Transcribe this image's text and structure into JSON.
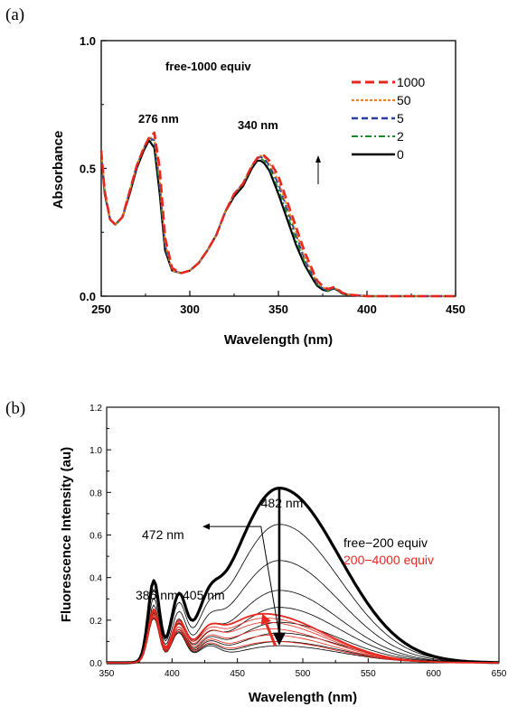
{
  "chart_data": [
    {
      "panel_label": "(a)",
      "type": "line",
      "title": "free-1000 equiv",
      "xlabel": "Wavelength (nm)",
      "ylabel": "Absorbance",
      "xlim": [
        250,
        450
      ],
      "ylim": [
        0.0,
        1.0
      ],
      "xticks": [
        "250",
        "300",
        "350",
        "400",
        "450"
      ],
      "yticks": [
        "0.0",
        "0.5",
        "1.0"
      ],
      "legend_position": "top-right",
      "annotations": [
        "276 nm",
        "340 nm"
      ],
      "arrow_direction": "up",
      "series": [
        {
          "name": "0",
          "color": "#000000",
          "dash": "solid",
          "x": [
            250,
            252,
            255,
            258,
            262,
            266,
            270,
            274,
            277,
            280,
            283,
            286,
            290,
            295,
            300,
            305,
            310,
            315,
            320,
            325,
            330,
            335,
            338,
            340,
            342,
            345,
            350,
            355,
            360,
            365,
            370,
            372,
            375,
            378,
            381,
            383,
            386,
            390,
            400,
            420,
            450
          ],
          "y": [
            0.55,
            0.4,
            0.3,
            0.28,
            0.31,
            0.4,
            0.5,
            0.57,
            0.61,
            0.58,
            0.4,
            0.18,
            0.1,
            0.09,
            0.1,
            0.13,
            0.18,
            0.24,
            0.33,
            0.39,
            0.43,
            0.5,
            0.53,
            0.53,
            0.52,
            0.49,
            0.4,
            0.3,
            0.2,
            0.12,
            0.06,
            0.04,
            0.025,
            0.02,
            0.03,
            0.025,
            0.01,
            0.005,
            0.0,
            0.0,
            0.0
          ]
        },
        {
          "name": "2",
          "color": "#1a8a2a",
          "dash": "dashdot",
          "x": [
            250,
            252,
            255,
            258,
            262,
            266,
            270,
            274,
            277,
            280,
            283,
            286,
            290,
            295,
            300,
            305,
            310,
            315,
            320,
            325,
            330,
            335,
            338,
            340,
            342,
            345,
            350,
            355,
            360,
            365,
            370,
            372,
            375,
            378,
            381,
            383,
            386,
            390,
            400,
            420,
            450
          ],
          "y": [
            0.56,
            0.4,
            0.3,
            0.28,
            0.31,
            0.41,
            0.51,
            0.58,
            0.62,
            0.6,
            0.42,
            0.19,
            0.1,
            0.09,
            0.1,
            0.13,
            0.18,
            0.24,
            0.33,
            0.4,
            0.44,
            0.51,
            0.54,
            0.54,
            0.53,
            0.5,
            0.42,
            0.32,
            0.22,
            0.13,
            0.07,
            0.045,
            0.03,
            0.02,
            0.03,
            0.025,
            0.01,
            0.005,
            0.0,
            0.0,
            0.0
          ]
        },
        {
          "name": "5",
          "color": "#2a3fa0",
          "dash": "dashed",
          "x": [
            250,
            252,
            255,
            258,
            262,
            266,
            270,
            274,
            277,
            280,
            283,
            286,
            290,
            295,
            300,
            305,
            310,
            315,
            320,
            325,
            330,
            335,
            338,
            340,
            342,
            345,
            350,
            355,
            360,
            365,
            370,
            372,
            375,
            378,
            381,
            383,
            386,
            390,
            400,
            420,
            450
          ],
          "y": [
            0.56,
            0.4,
            0.3,
            0.28,
            0.31,
            0.41,
            0.51,
            0.58,
            0.62,
            0.61,
            0.44,
            0.2,
            0.1,
            0.09,
            0.1,
            0.13,
            0.18,
            0.24,
            0.33,
            0.4,
            0.44,
            0.51,
            0.54,
            0.545,
            0.54,
            0.51,
            0.44,
            0.34,
            0.24,
            0.14,
            0.075,
            0.05,
            0.03,
            0.022,
            0.032,
            0.027,
            0.012,
            0.005,
            0.0,
            0.0,
            0.0
          ]
        },
        {
          "name": "50",
          "color": "#f08020",
          "dash": "dotted",
          "x": [
            250,
            252,
            255,
            258,
            262,
            266,
            270,
            274,
            277,
            280,
            283,
            286,
            290,
            295,
            300,
            305,
            310,
            315,
            320,
            325,
            330,
            335,
            338,
            340,
            342,
            345,
            350,
            355,
            360,
            365,
            370,
            372,
            375,
            378,
            381,
            383,
            386,
            390,
            400,
            420,
            450
          ],
          "y": [
            0.57,
            0.41,
            0.3,
            0.28,
            0.31,
            0.41,
            0.51,
            0.58,
            0.62,
            0.62,
            0.46,
            0.21,
            0.1,
            0.09,
            0.1,
            0.13,
            0.18,
            0.24,
            0.33,
            0.4,
            0.44,
            0.51,
            0.54,
            0.55,
            0.545,
            0.52,
            0.45,
            0.35,
            0.25,
            0.15,
            0.08,
            0.055,
            0.035,
            0.025,
            0.033,
            0.028,
            0.012,
            0.005,
            0.0,
            0.0,
            0.0
          ]
        },
        {
          "name": "1000",
          "color": "#e8281e",
          "dash": "longdash",
          "x": [
            250,
            252,
            255,
            258,
            262,
            266,
            270,
            274,
            277,
            280,
            283,
            286,
            290,
            295,
            300,
            305,
            310,
            315,
            320,
            325,
            330,
            335,
            338,
            340,
            342,
            345,
            350,
            355,
            360,
            365,
            370,
            372,
            375,
            378,
            381,
            383,
            386,
            390,
            400,
            420,
            450
          ],
          "y": [
            0.57,
            0.41,
            0.3,
            0.28,
            0.31,
            0.41,
            0.51,
            0.58,
            0.62,
            0.64,
            0.5,
            0.23,
            0.11,
            0.09,
            0.1,
            0.13,
            0.18,
            0.24,
            0.33,
            0.4,
            0.44,
            0.51,
            0.54,
            0.55,
            0.55,
            0.53,
            0.47,
            0.37,
            0.27,
            0.17,
            0.09,
            0.06,
            0.04,
            0.028,
            0.035,
            0.03,
            0.013,
            0.006,
            0.0,
            0.0,
            0.0
          ]
        }
      ]
    },
    {
      "panel_label": "(b)",
      "type": "line",
      "xlabel": "Wavelength (nm)",
      "ylabel": "Fluorescence Intensity (au)",
      "xlim": [
        350,
        650
      ],
      "ylim": [
        0.0,
        1.2
      ],
      "xticks": [
        "350",
        "400",
        "450",
        "500",
        "550",
        "600",
        "650"
      ],
      "yticks": [
        "0.0",
        "0.2",
        "0.4",
        "0.6",
        "0.8",
        "1.0",
        "1.2"
      ],
      "annotations": [
        "482 nm",
        "472 nm",
        "386 nm",
        "405 nm"
      ],
      "legend_text": [
        {
          "text": "free−200 equiv",
          "color": "#000000"
        },
        {
          "text": "200−4000 equiv",
          "color": "#e8281e"
        }
      ],
      "arrow_down": {
        "x": 482,
        "y_from": 0.82,
        "y_to": 0.09
      },
      "arrow_up_red": {
        "x_from": 479,
        "y_from": 0.08,
        "x_to": 469,
        "y_to": 0.23
      },
      "annotation_arrow": {
        "x_from": 482,
        "y_from": 0.13,
        "x_to": 468,
        "y_to": 0.64
      },
      "series": [
        {
          "name": "free",
          "group": "black",
          "peak": 0.82,
          "peak_x": 482,
          "bold": true
        },
        {
          "group": "black",
          "peak": 0.65,
          "peak_x": 482
        },
        {
          "group": "black",
          "peak": 0.48,
          "peak_x": 482
        },
        {
          "group": "black",
          "peak": 0.34,
          "peak_x": 482
        },
        {
          "group": "black",
          "peak": 0.26,
          "peak_x": 482
        },
        {
          "group": "black",
          "peak": 0.19,
          "peak_x": 482
        },
        {
          "group": "black",
          "peak": 0.14,
          "peak_x": 482
        },
        {
          "group": "black",
          "peak": 0.1,
          "peak_x": 482
        },
        {
          "group": "black",
          "peak": 0.08,
          "peak_x": 482
        },
        {
          "group": "red",
          "peak": 0.1,
          "peak_x": 478
        },
        {
          "group": "red",
          "peak": 0.13,
          "peak_x": 476
        },
        {
          "group": "red",
          "peak": 0.16,
          "peak_x": 474
        },
        {
          "group": "red",
          "peak": 0.19,
          "peak_x": 472
        },
        {
          "group": "red",
          "peak": 0.21,
          "peak_x": 471
        },
        {
          "group": "red",
          "peak": 0.23,
          "peak_x": 470,
          "bold": true
        }
      ]
    }
  ]
}
